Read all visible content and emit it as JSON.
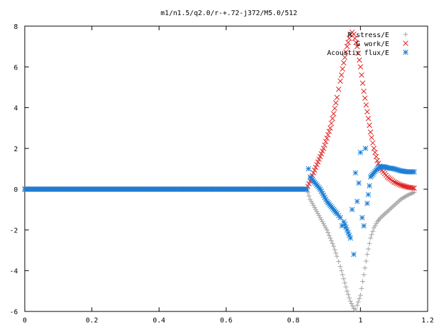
{
  "chart_data": {
    "type": "scatter",
    "title": "m1/n1.5/q2.0/r-+.72-j372/M5.0/512",
    "xlabel": "",
    "ylabel": "",
    "xlim": [
      0,
      1.2
    ],
    "ylim": [
      -6,
      8
    ],
    "xticks": [
      "0",
      "0.2",
      "0.4",
      "0.6",
      "0.8",
      "1",
      "1.2"
    ],
    "yticks": [
      "-6",
      "-4",
      "-2",
      "0",
      "2",
      "4",
      "6",
      "8"
    ],
    "xtick_values": [
      0,
      0.2,
      0.4,
      0.6,
      0.8,
      1.0,
      1.2
    ],
    "ytick_values": [
      -6,
      -4,
      -2,
      0,
      2,
      4,
      6,
      8
    ],
    "grid": false,
    "legend_position": "top-right",
    "series": [
      {
        "name": "R stress/E",
        "marker": "plus",
        "color": "#a0a0a0",
        "x": [
          0.0,
          0.84,
          0.85,
          0.86,
          0.87,
          0.88,
          0.89,
          0.9,
          0.91,
          0.92,
          0.93,
          0.94,
          0.95,
          0.96,
          0.97,
          0.98,
          0.985,
          0.99,
          1.0,
          1.01,
          1.02,
          1.03,
          1.04,
          1.05,
          1.06,
          1.08,
          1.1,
          1.12,
          1.14,
          1.16
        ],
        "y": [
          0.0,
          0.0,
          -0.5,
          -0.8,
          -1.1,
          -1.4,
          -1.7,
          -2.0,
          -2.4,
          -2.8,
          -3.3,
          -3.8,
          -4.4,
          -5.0,
          -5.5,
          -5.85,
          -5.9,
          -5.7,
          -5.2,
          -4.2,
          -3.2,
          -2.4,
          -1.9,
          -1.6,
          -1.4,
          -1.1,
          -0.8,
          -0.5,
          -0.3,
          -0.15
        ]
      },
      {
        "name": "G work/E",
        "marker": "cross",
        "color": "#e02020",
        "x": [
          0.0,
          0.84,
          0.85,
          0.86,
          0.87,
          0.88,
          0.89,
          0.9,
          0.91,
          0.92,
          0.93,
          0.94,
          0.95,
          0.96,
          0.97,
          0.975,
          0.98,
          0.99,
          1.0,
          1.01,
          1.02,
          1.03,
          1.04,
          1.05,
          1.06,
          1.08,
          1.1,
          1.12,
          1.14,
          1.16
        ],
        "y": [
          0.0,
          0.0,
          0.4,
          0.8,
          1.2,
          1.6,
          2.0,
          2.5,
          3.0,
          3.7,
          4.5,
          5.3,
          6.2,
          7.0,
          7.6,
          7.7,
          7.6,
          7.0,
          6.0,
          4.8,
          3.8,
          2.8,
          2.0,
          1.4,
          1.0,
          0.6,
          0.35,
          0.2,
          0.1,
          0.05
        ]
      },
      {
        "name": "Acoustic flux/E",
        "marker": "star",
        "color": "#1a7fd6",
        "x": [
          0.0,
          0.84,
          0.845,
          0.85,
          0.86,
          0.87,
          0.88,
          0.89,
          0.9,
          0.91,
          0.92,
          0.93,
          0.94,
          0.945,
          0.95,
          0.96,
          0.97,
          0.975,
          0.98,
          0.985,
          0.99,
          0.995,
          1.0,
          1.005,
          1.01,
          1.015,
          1.02,
          1.03,
          1.04,
          1.05,
          1.06,
          1.07,
          1.08,
          1.1,
          1.12,
          1.14,
          1.16
        ],
        "y": [
          0.0,
          0.0,
          1.0,
          0.6,
          0.4,
          0.2,
          0.0,
          -0.3,
          -0.6,
          -0.8,
          -1.0,
          -1.2,
          -1.4,
          -1.8,
          -1.6,
          -2.0,
          -2.4,
          -1.0,
          -3.2,
          0.8,
          -0.6,
          0.3,
          1.8,
          -1.4,
          -1.8,
          2.0,
          -0.7,
          0.6,
          0.8,
          1.0,
          1.1,
          1.1,
          1.05,
          1.0,
          0.9,
          0.85,
          0.85
        ]
      }
    ]
  }
}
